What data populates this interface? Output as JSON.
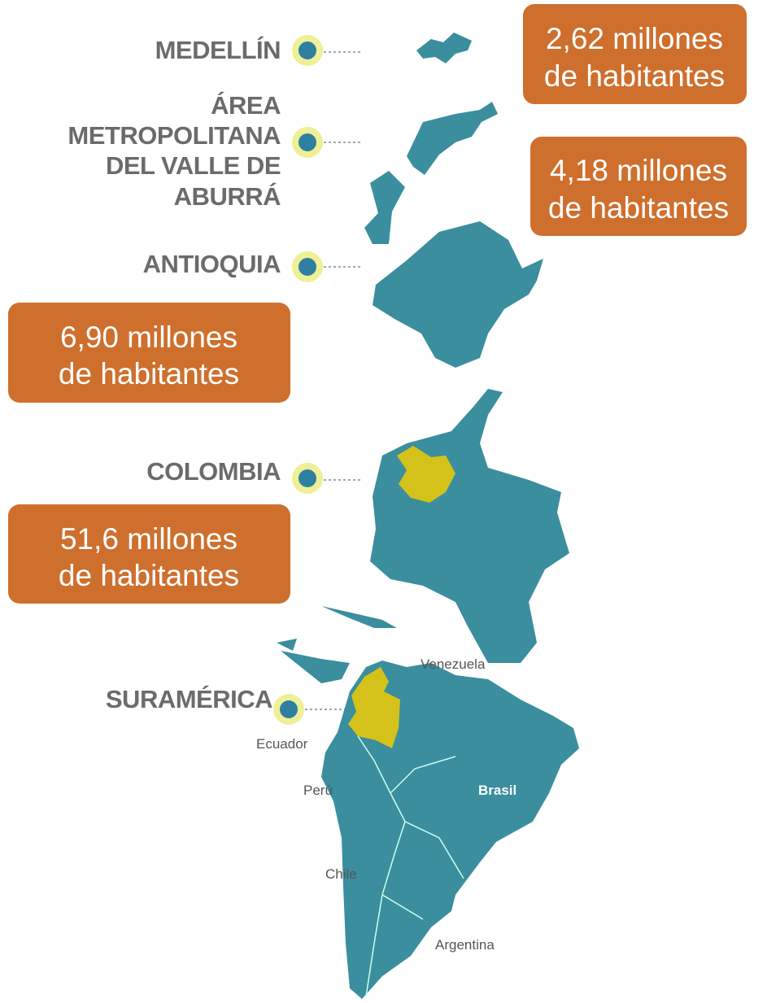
{
  "levels": [
    {
      "label": [
        "MEDELLÍN"
      ],
      "population": [
        "2,62 millones",
        "de habitantes"
      ]
    },
    {
      "label": [
        "ÁREA",
        "METROPOLITANA",
        "DEL VALLE DE",
        "ABURRÁ"
      ],
      "population": [
        "4,18 millones",
        "de habitantes"
      ]
    },
    {
      "label": [
        "ANTIOQUIA"
      ],
      "population": [
        "6,90 millones",
        "de habitantes"
      ]
    },
    {
      "label": [
        "COLOMBIA"
      ],
      "population": [
        "51,6 millones",
        "de habitantes"
      ]
    },
    {
      "label": [
        "SURAMÉRICA"
      ]
    }
  ],
  "map_labels": [
    "Venezuela",
    "Ecuador",
    "Perú",
    "Brasil",
    "Chile",
    "Argentina"
  ]
}
